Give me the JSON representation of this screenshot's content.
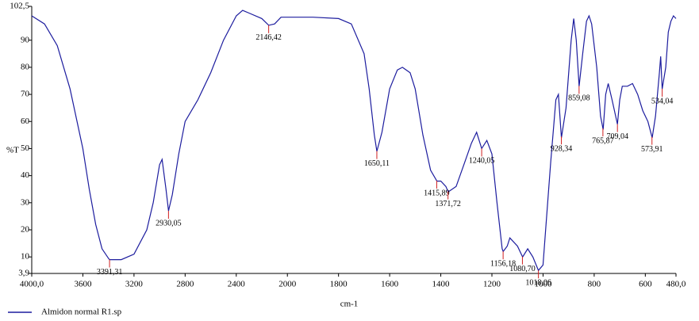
{
  "chart_data": {
    "type": "line",
    "x_label": "cm-1",
    "y_label": "%T",
    "xlim": [
      4000,
      480
    ],
    "ylim": [
      3.9,
      102.5
    ],
    "xticks": [
      {
        "value": 4000,
        "label": "4000,0"
      },
      3600,
      3200,
      2800,
      2400,
      2000,
      1800,
      1600,
      1400,
      1200,
      1000,
      800,
      600,
      {
        "value": 480,
        "label": "480,0"
      }
    ],
    "yticks": [
      {
        "value": 3.9,
        "label": "3,9"
      },
      10,
      20,
      30,
      40,
      50,
      60,
      70,
      80,
      90,
      {
        "value": 102.5,
        "label": "102,5"
      }
    ],
    "x": [
      4000,
      3900,
      3800,
      3700,
      3600,
      3550,
      3500,
      3450,
      3400,
      3391,
      3300,
      3200,
      3100,
      3050,
      3000,
      2980,
      2950,
      2930,
      2900,
      2850,
      2800,
      2700,
      2600,
      2500,
      2400,
      2350,
      2300,
      2200,
      2146,
      2100,
      2050,
      2000,
      1900,
      1800,
      1750,
      1700,
      1680,
      1660,
      1650,
      1630,
      1600,
      1570,
      1550,
      1520,
      1500,
      1470,
      1440,
      1415,
      1400,
      1380,
      1371,
      1340,
      1310,
      1280,
      1260,
      1240,
      1220,
      1200,
      1180,
      1160,
      1156,
      1140,
      1130,
      1100,
      1080,
      1060,
      1040,
      1018,
      1000,
      990,
      970,
      950,
      940,
      928,
      910,
      890,
      880,
      870,
      859,
      845,
      830,
      820,
      810,
      790,
      775,
      765,
      755,
      745,
      730,
      709,
      700,
      690,
      670,
      650,
      630,
      610,
      590,
      573,
      560,
      545,
      540,
      534,
      520,
      510,
      500,
      490,
      480
    ],
    "series": [
      {
        "name": "Almidon normal R1.sp",
        "color": "#1c1c9e",
        "values": [
          99,
          96,
          88,
          72,
          50,
          35,
          22,
          13,
          9.5,
          9,
          9,
          11,
          20,
          30,
          44,
          46,
          35,
          27,
          33,
          48,
          60,
          68,
          78,
          90,
          99,
          101,
          100,
          98,
          95.5,
          96,
          98.5,
          98.5,
          98.5,
          98,
          96,
          85,
          72,
          55,
          49,
          56,
          72,
          79,
          80,
          78,
          72,
          55,
          42,
          38,
          38,
          36,
          34,
          36,
          44,
          52,
          56,
          50,
          53,
          48,
          30,
          13,
          12,
          14,
          17,
          14,
          10,
          13,
          10,
          5,
          7,
          20,
          45,
          68,
          70,
          54,
          65,
          90,
          98,
          90,
          73,
          85,
          97,
          99,
          96,
          80,
          62,
          57,
          70,
          74,
          68,
          59,
          68,
          73,
          73,
          74,
          70,
          64,
          60,
          54,
          62,
          78,
          84,
          72,
          80,
          93,
          97,
          99,
          98
        ]
      }
    ],
    "annotations": [
      {
        "x": 3391.31,
        "label": "3391,31"
      },
      {
        "x": 2930.05,
        "label": "2930,05"
      },
      {
        "x": 2146.42,
        "label": "2146,42"
      },
      {
        "x": 1650.11,
        "label": "1650,11"
      },
      {
        "x": 1415.89,
        "label": "1415,89"
      },
      {
        "x": 1371.72,
        "label": "1371,72"
      },
      {
        "x": 1240.05,
        "label": "1240,05"
      },
      {
        "x": 1156.18,
        "label": "1156,18"
      },
      {
        "x": 1080.7,
        "label": "1080,70"
      },
      {
        "x": 1018.06,
        "label": "1018,06"
      },
      {
        "x": 928.34,
        "label": "928,34"
      },
      {
        "x": 859.08,
        "label": "859,08"
      },
      {
        "x": 765.87,
        "label": "765,87"
      },
      {
        "x": 709.04,
        "label": "709,04"
      },
      {
        "x": 573.91,
        "label": "573,91"
      },
      {
        "x": 534.04,
        "label": "534,04"
      }
    ]
  }
}
